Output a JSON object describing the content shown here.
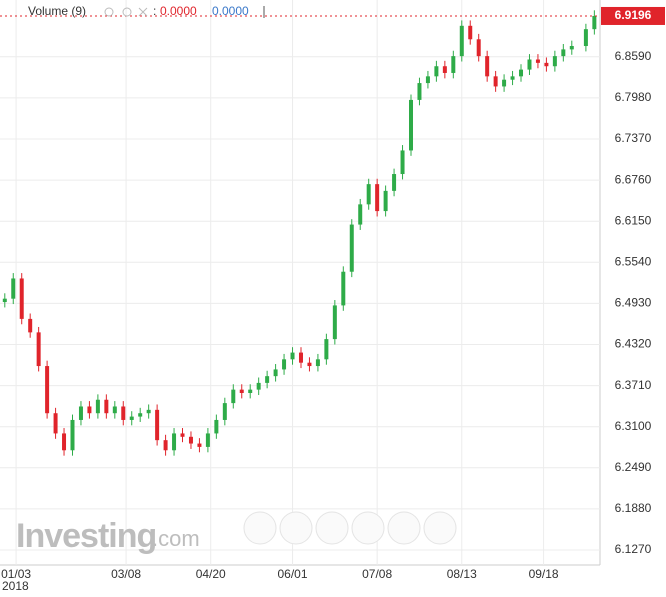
{
  "chart_data": {
    "type": "candlestick",
    "indicator": {
      "name": "Volume (9)",
      "readings": [
        "0.0000",
        "0.0000"
      ]
    },
    "watermark": {
      "brand": "Investing",
      "suffix": ".com"
    },
    "x": [
      -4,
      -1,
      2,
      5,
      8,
      11,
      14,
      17,
      20,
      23,
      26,
      29,
      32,
      35,
      38,
      41,
      44,
      47,
      50,
      53,
      56,
      59,
      62,
      65,
      68,
      71,
      74,
      77,
      80,
      83,
      86,
      89,
      92,
      95,
      98,
      101,
      104,
      107,
      110,
      113,
      116,
      119,
      122,
      125,
      128,
      131,
      134,
      137,
      140,
      143,
      146,
      149,
      152,
      155,
      158,
      161,
      164,
      167,
      170,
      173,
      176,
      179,
      182,
      185,
      188,
      191,
      194,
      197,
      202,
      205
    ],
    "open": [
      6.495,
      6.5,
      6.53,
      6.47,
      6.45,
      6.4,
      6.33,
      6.3,
      6.275,
      6.32,
      6.34,
      6.33,
      6.35,
      6.33,
      6.34,
      6.32,
      6.325,
      6.33,
      6.335,
      6.29,
      6.275,
      6.3,
      6.295,
      6.285,
      6.28,
      6.3,
      6.32,
      6.345,
      6.365,
      6.36,
      6.365,
      6.375,
      6.385,
      6.395,
      6.41,
      6.42,
      6.405,
      6.4,
      6.41,
      6.44,
      6.49,
      6.54,
      6.61,
      6.64,
      6.67,
      6.63,
      6.66,
      6.685,
      6.72,
      6.795,
      6.82,
      6.83,
      6.845,
      6.835,
      6.86,
      6.905,
      6.885,
      6.86,
      6.83,
      6.815,
      6.825,
      6.83,
      6.84,
      6.855,
      6.85,
      6.845,
      6.86,
      6.87,
      6.875,
      6.9
    ],
    "high": [
      6.508,
      6.538,
      6.538,
      6.478,
      6.458,
      6.408,
      6.338,
      6.308,
      6.328,
      6.348,
      6.348,
      6.358,
      6.358,
      6.348,
      6.348,
      6.333,
      6.338,
      6.343,
      6.343,
      6.298,
      6.308,
      6.308,
      6.303,
      6.293,
      6.308,
      6.328,
      6.353,
      6.373,
      6.373,
      6.373,
      6.383,
      6.393,
      6.403,
      6.418,
      6.428,
      6.428,
      6.413,
      6.418,
      6.448,
      6.498,
      6.548,
      6.618,
      6.648,
      6.678,
      6.678,
      6.668,
      6.693,
      6.728,
      6.803,
      6.828,
      6.838,
      6.853,
      6.853,
      6.868,
      6.913,
      6.913,
      6.893,
      6.868,
      6.838,
      6.833,
      6.838,
      6.848,
      6.863,
      6.863,
      6.858,
      6.868,
      6.878,
      6.883,
      6.908,
      6.928
    ],
    "low": [
      6.487,
      6.492,
      6.462,
      6.442,
      6.392,
      6.322,
      6.292,
      6.267,
      6.267,
      6.312,
      6.322,
      6.322,
      6.322,
      6.322,
      6.312,
      6.312,
      6.317,
      6.322,
      6.282,
      6.267,
      6.267,
      6.287,
      6.277,
      6.272,
      6.272,
      6.292,
      6.312,
      6.337,
      6.352,
      6.352,
      6.357,
      6.367,
      6.377,
      6.387,
      6.402,
      6.397,
      6.392,
      6.392,
      6.402,
      6.432,
      6.482,
      6.532,
      6.602,
      6.632,
      6.622,
      6.622,
      6.652,
      6.677,
      6.712,
      6.787,
      6.812,
      6.822,
      6.827,
      6.827,
      6.852,
      6.877,
      6.852,
      6.822,
      6.807,
      6.807,
      6.817,
      6.822,
      6.832,
      6.842,
      6.837,
      6.837,
      6.852,
      6.862,
      6.867,
      6.892
    ],
    "close": [
      6.5,
      6.53,
      6.47,
      6.45,
      6.4,
      6.33,
      6.3,
      6.275,
      6.32,
      6.34,
      6.33,
      6.35,
      6.33,
      6.34,
      6.32,
      6.325,
      6.33,
      6.335,
      6.29,
      6.275,
      6.3,
      6.295,
      6.285,
      6.28,
      6.3,
      6.32,
      6.345,
      6.365,
      6.36,
      6.365,
      6.375,
      6.385,
      6.395,
      6.41,
      6.42,
      6.405,
      6.4,
      6.41,
      6.44,
      6.49,
      6.54,
      6.61,
      6.64,
      6.67,
      6.63,
      6.66,
      6.685,
      6.72,
      6.795,
      6.82,
      6.83,
      6.845,
      6.835,
      6.86,
      6.905,
      6.885,
      6.86,
      6.83,
      6.815,
      6.825,
      6.83,
      6.84,
      6.855,
      6.85,
      6.845,
      6.86,
      6.87,
      6.875,
      6.9,
      6.9196
    ],
    "up_color": "#2eab48",
    "down_color": "#e0242b",
    "last_price": 6.9196,
    "xlim": [
      -5.7,
      207
    ],
    "xticks": [
      {
        "value": 0,
        "label": "01/03"
      },
      {
        "value": 39,
        "label": "03/08"
      },
      {
        "value": 69,
        "label": "04/20"
      },
      {
        "value": 98,
        "label": "06/01"
      },
      {
        "value": 128,
        "label": "07/08"
      },
      {
        "value": 158,
        "label": "08/13"
      },
      {
        "value": 187,
        "label": "09/18"
      }
    ],
    "year_label": "2018",
    "ylim": [
      6.0973,
      6.9433
    ],
    "yticks": [
      {
        "value": 6.127,
        "label": "6.1270"
      },
      {
        "value": 6.188,
        "label": "6.1880"
      },
      {
        "value": 6.249,
        "label": "6.2490"
      },
      {
        "value": 6.31,
        "label": "6.3100"
      },
      {
        "value": 6.371,
        "label": "6.3710"
      },
      {
        "value": 6.432,
        "label": "6.4320"
      },
      {
        "value": 6.493,
        "label": "6.4930"
      },
      {
        "value": 6.554,
        "label": "6.5540"
      },
      {
        "value": 6.615,
        "label": "6.6150"
      },
      {
        "value": 6.676,
        "label": "6.6760"
      },
      {
        "value": 6.737,
        "label": "6.7370"
      },
      {
        "value": 6.798,
        "label": "6.7980"
      },
      {
        "value": 6.859,
        "label": "6.8590"
      }
    ],
    "grid": true
  }
}
